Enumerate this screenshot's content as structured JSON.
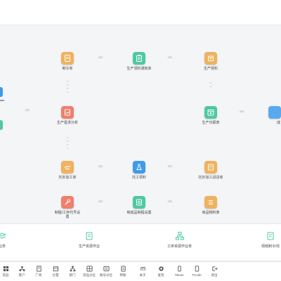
{
  "colors": {
    "orange": "#efb25e",
    "green": "#4ec9a0",
    "red": "#f07f6b",
    "blue": "#3d9be9",
    "lightblue": "#5aa9ef"
  },
  "nodes": {
    "zhiling": {
      "label": "制令单",
      "icon": "document-icon"
    },
    "tongzhi": {
      "label": "生产领料通知单",
      "icon": "clipboard-icon"
    },
    "lingliao": {
      "label": "生产领料",
      "icon": "box-icon"
    },
    "xuqiu": {
      "label": "生产需求分析",
      "icon": "chart-icon"
    },
    "ribaobiao": {
      "label": "生产日报表",
      "icon": "calendar-icon"
    },
    "waifa": {
      "label": "托外加工单",
      "icon": "handshake-icon"
    },
    "tuogong": {
      "label": "托工领料",
      "icon": "flask-icon"
    },
    "jinhuo": {
      "label": "托外加工进货单",
      "icon": "receipt-icon"
    },
    "gongxu_line1": {
      "label": "制程/工序代号设",
      "icon": "wrench-icon"
    },
    "gongxu_line2": {
      "label": "置"
    },
    "zhipin": {
      "label": "制成品制程设置",
      "icon": "gear-icon"
    },
    "wuliao": {
      "label": "商品物料表",
      "icon": "list-icon"
    },
    "edge_left_top": {
      "icon": "edge-icon"
    },
    "edge_right": {
      "label": "成",
      "icon": "edge-icon"
    }
  },
  "bottom": [
    {
      "label": "业务",
      "icon": "stack-icon"
    },
    {
      "label": "生产资源作业",
      "icon": "document-icon"
    },
    {
      "label": "工序资源作业单",
      "icon": "hierarchy-icon"
    },
    {
      "label": "现结制令/托",
      "icon": "document-edit-icon"
    }
  ],
  "tabs": [
    {
      "label": "资品",
      "icon": "grid-icon"
    },
    {
      "label": "客户",
      "icon": "org-icon"
    },
    {
      "label": "厂商",
      "icon": "building-icon"
    },
    {
      "label": "仓量",
      "icon": "warehouse-icon"
    },
    {
      "label": "部门",
      "icon": "department-icon"
    },
    {
      "label": "资品分位",
      "icon": "category-icon"
    },
    {
      "label": "账号分位",
      "icon": "account-icon"
    },
    {
      "label": "转账",
      "icon": "transfer-icon"
    },
    {
      "label": "关于",
      "icon": "info-icon"
    },
    {
      "label": "查资",
      "icon": "search-icon"
    },
    {
      "label": "TBoss",
      "icon": "phone-icon"
    },
    {
      "label": "TCode",
      "icon": "tablet-icon"
    },
    {
      "label": "退出",
      "icon": "exit-icon"
    }
  ]
}
